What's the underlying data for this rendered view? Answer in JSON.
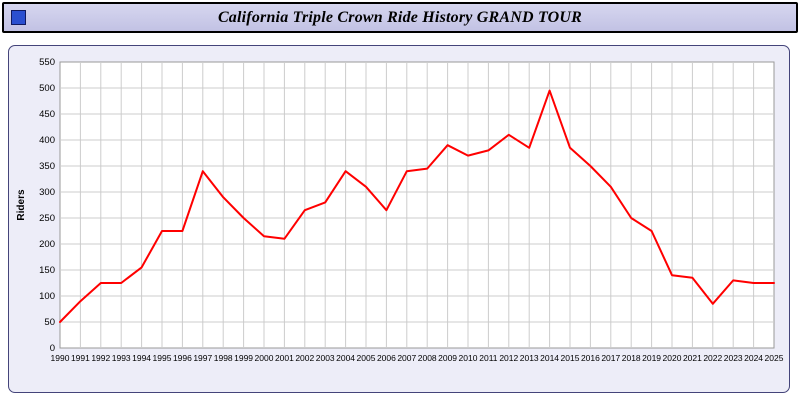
{
  "window": {
    "title": "California Triple Crown Ride History GRAND TOUR"
  },
  "chart_data": {
    "type": "line",
    "title": "California Triple Crown Ride History GRAND TOUR",
    "xlabel": "",
    "ylabel": "Riders",
    "x": [
      1990,
      1991,
      1992,
      1993,
      1994,
      1995,
      1996,
      1997,
      1998,
      1999,
      2000,
      2001,
      2002,
      2003,
      2004,
      2005,
      2006,
      2007,
      2008,
      2009,
      2010,
      2011,
      2012,
      2013,
      2014,
      2015,
      2016,
      2017,
      2018,
      2019,
      2020,
      2021,
      2022,
      2023,
      2024,
      2025
    ],
    "series": [
      {
        "name": "Riders",
        "values": [
          50,
          90,
          125,
          125,
          155,
          225,
          225,
          340,
          290,
          250,
          215,
          210,
          265,
          280,
          340,
          310,
          265,
          340,
          345,
          390,
          370,
          380,
          410,
          385,
          495,
          385,
          350,
          310,
          250,
          225,
          140,
          135,
          85,
          130,
          125,
          125
        ]
      }
    ],
    "ylim": [
      0,
      550
    ],
    "ytick_step": 50,
    "grid": true,
    "legend_position": "none",
    "line_color": "#ff0000",
    "grid_color": "#cccccc",
    "plot_bg": "#ffffff",
    "panel_bg": "#ededf8"
  }
}
